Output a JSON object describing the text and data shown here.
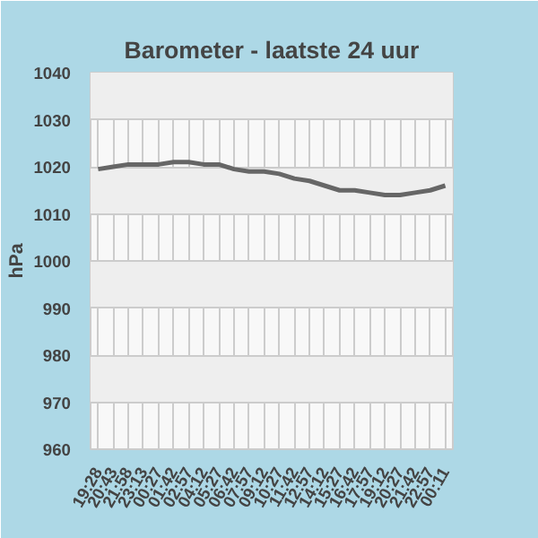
{
  "chart_data": {
    "type": "line",
    "title": "Barometer - laatste 24 uur",
    "ylabel": "hPa",
    "categories": [
      "19:28",
      "20:43",
      "21:58",
      "23:13",
      "00:27",
      "01:42",
      "02:57",
      "04:12",
      "05:27",
      "06:42",
      "07:57",
      "09:12",
      "10:27",
      "11:42",
      "12:57",
      "14:12",
      "15:27",
      "16:42",
      "17:57",
      "19:12",
      "20:27",
      "21:42",
      "22:57",
      "00:11"
    ],
    "series": [
      {
        "color": "#666666",
        "values": [
          1019.5,
          1020,
          1020.5,
          1020.5,
          1020.5,
          1021,
          1021,
          1020.5,
          1020.5,
          1019.5,
          1019,
          1019,
          1018.5,
          1017.5,
          1017,
          1016,
          1015,
          1015,
          1014.5,
          1014,
          1014,
          1014.5,
          1015,
          1016
        ]
      }
    ],
    "ylim": [
      960,
      1040
    ],
    "yticks": [
      960,
      970,
      980,
      990,
      1000,
      1010,
      1020,
      1030,
      1040
    ],
    "grid": true,
    "marker": "none",
    "line_style": "solid"
  }
}
